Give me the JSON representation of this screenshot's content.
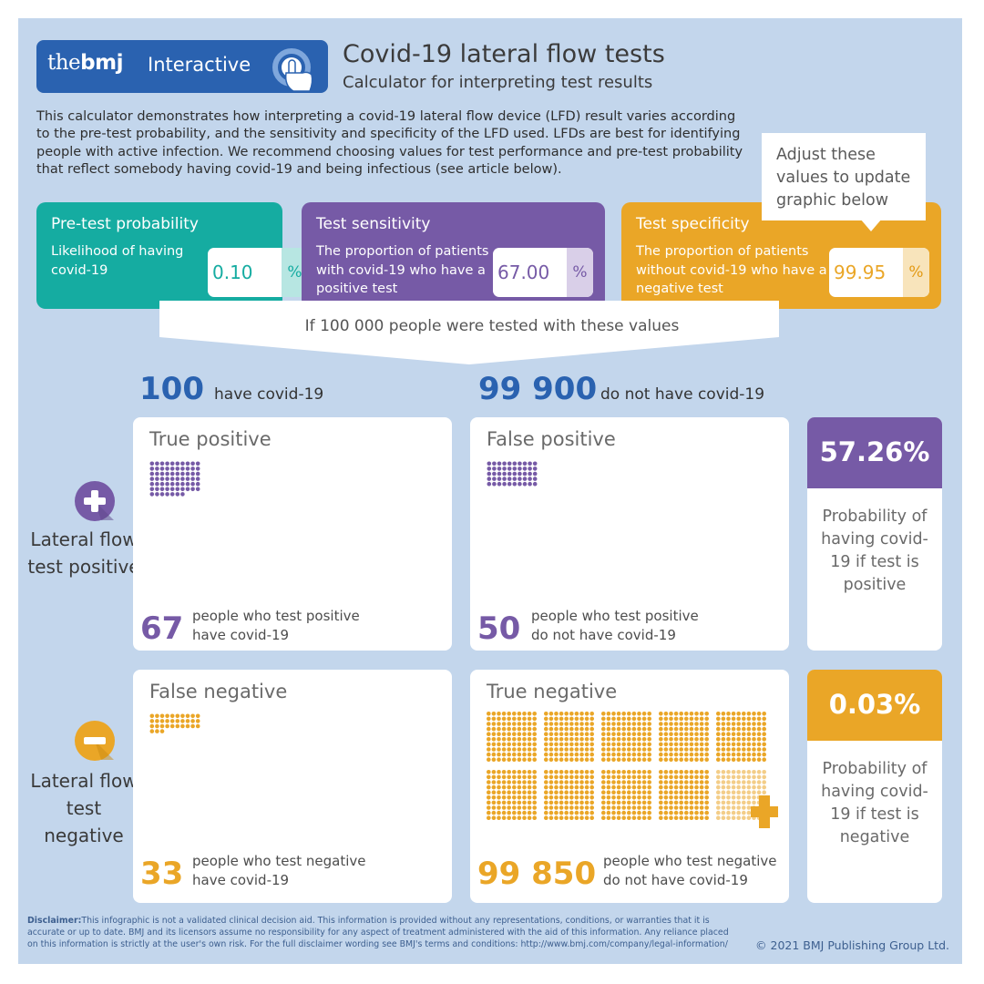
{
  "header": {
    "brand_prefix": "the",
    "brand_bold": "bmj",
    "interactive_label": "Interactive",
    "title": "Covid-19 lateral flow tests",
    "subtitle": "Calculator for interpreting test results",
    "intro": "This calculator demonstrates how interpreting a covid-19 lateral flow device (LFD) result varies according to the pre-test probability, and the sensitivity and specificity of the LFD used. LFDs are best for identifying people with active infection. We recommend choosing values for test performance and pre-test probability that reflect somebody having covid-19 and being infectious (see article below)."
  },
  "callout": "Adjust these values to update graphic below",
  "inputs": {
    "pretest": {
      "title": "Pre-test probability",
      "description": "Likelihood of having covid-19",
      "value": "0.10",
      "unit": "%"
    },
    "sensitivity": {
      "title": "Test sensitivity",
      "description": "The proportion of patients with covid-19 who have a positive test",
      "value": "67.00",
      "unit": "%"
    },
    "specificity": {
      "title": "Test specificity",
      "description": "The proportion of patients without covid-19 who have a negative test",
      "value": "99.95",
      "unit": "%"
    }
  },
  "population_label": "If 100 000 people were tested with these values",
  "counts": {
    "have": {
      "number": "100",
      "label": "have covid-19"
    },
    "not_have": {
      "number": "99 900",
      "label": "do not have covid-19"
    }
  },
  "rows": {
    "positive": {
      "label": "Lateral flow test positive",
      "icon": "plus-icon"
    },
    "negative": {
      "label": "Lateral flow test negative",
      "icon": "minus-icon"
    }
  },
  "cards": {
    "true_positive": {
      "title": "True positive",
      "count": "67",
      "count_value": 67,
      "description": "people who test positive have covid-19"
    },
    "false_positive": {
      "title": "False positive",
      "count": "50",
      "count_value": 50,
      "description": "people who test positive do not have covid-19"
    },
    "false_negative": {
      "title": "False negative",
      "count": "33",
      "count_value": 33,
      "description": "people who test negative have covid-19"
    },
    "true_negative": {
      "title": "True negative",
      "count": "99 850",
      "count_value": 99850,
      "description": "people who test negative do not have covid-19"
    }
  },
  "probabilities": {
    "positive": {
      "value": "57.26%",
      "description": "Probability of having covid-19 if test is positive"
    },
    "negative": {
      "value": "0.03%",
      "description": "Probability of having covid-19 if test is negative"
    }
  },
  "disclaimer": {
    "label": "Disclaimer:",
    "text": "This infographic is not a validated clinical decision aid. This information is provided without any representations, conditions, or warranties that it is accurate or up to date. BMJ and its licensors assume no responsibility for any aspect of treatment administered with the aid of this information. Any reliance placed on this information is strictly at the user's own risk. For the full disclaimer wording see BMJ's terms and conditions: http://www.bmj.com/company/legal-information/"
  },
  "copyright": "© 2021 BMJ Publishing Group Ltd.",
  "colors": {
    "brand_blue": "#2a62b0",
    "teal": "#15aca1",
    "purple": "#765aa6",
    "amber": "#eaa627",
    "background": "#c3d6ec"
  }
}
